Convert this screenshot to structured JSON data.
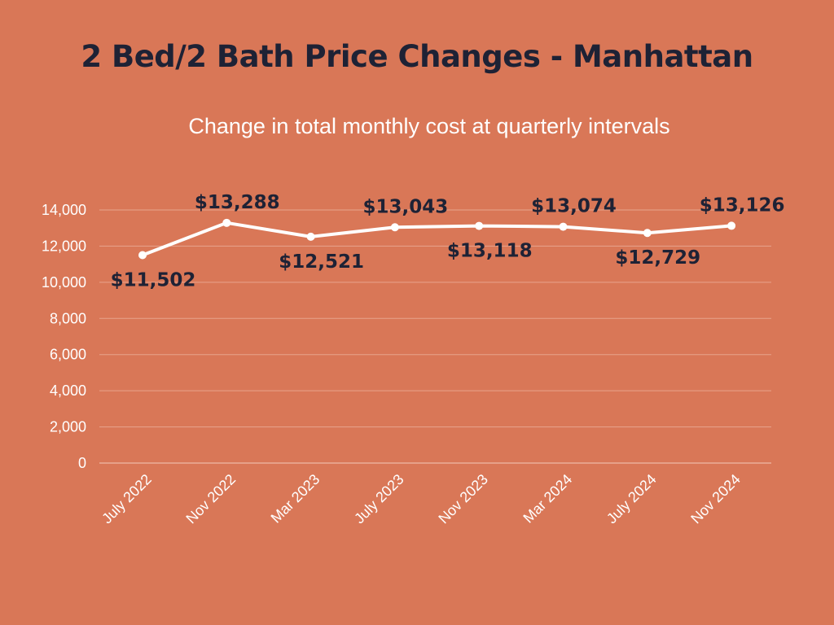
{
  "chart_data": {
    "type": "line",
    "title": "2 Bed/2 Bath Price Changes - Manhattan",
    "subtitle": "Change in total monthly cost at quarterly intervals",
    "xlabel": "",
    "ylabel": "",
    "categories": [
      "July 2022",
      "Nov 2022",
      "Mar 2023",
      "July 2023",
      "Nov 2023",
      "Mar 2024",
      "July 2024",
      "Nov 2024"
    ],
    "values": [
      11502,
      13288,
      12521,
      13043,
      13118,
      13074,
      12729,
      13126
    ],
    "data_labels": [
      "$11,502",
      "$13,288",
      "$12,521",
      "$13,043",
      "$13,118",
      "$13,074",
      "$12,729",
      "$13,126"
    ],
    "label_positions": [
      "below",
      "above",
      "below",
      "above",
      "below",
      "above",
      "below",
      "above"
    ],
    "ylim": [
      0,
      14000
    ],
    "yticks": [
      0,
      2000,
      4000,
      6000,
      8000,
      10000,
      12000,
      14000
    ],
    "ytick_labels": [
      "0",
      "2,000",
      "4,000",
      "6,000",
      "8,000",
      "10,000",
      "12,000",
      "14,000"
    ],
    "grid": true,
    "legend": "none",
    "colors": {
      "background": "#d97757",
      "line": "#ffffff",
      "gridline": "#e8a48c",
      "title": "#1e2235",
      "labels": "#1e2235"
    }
  }
}
